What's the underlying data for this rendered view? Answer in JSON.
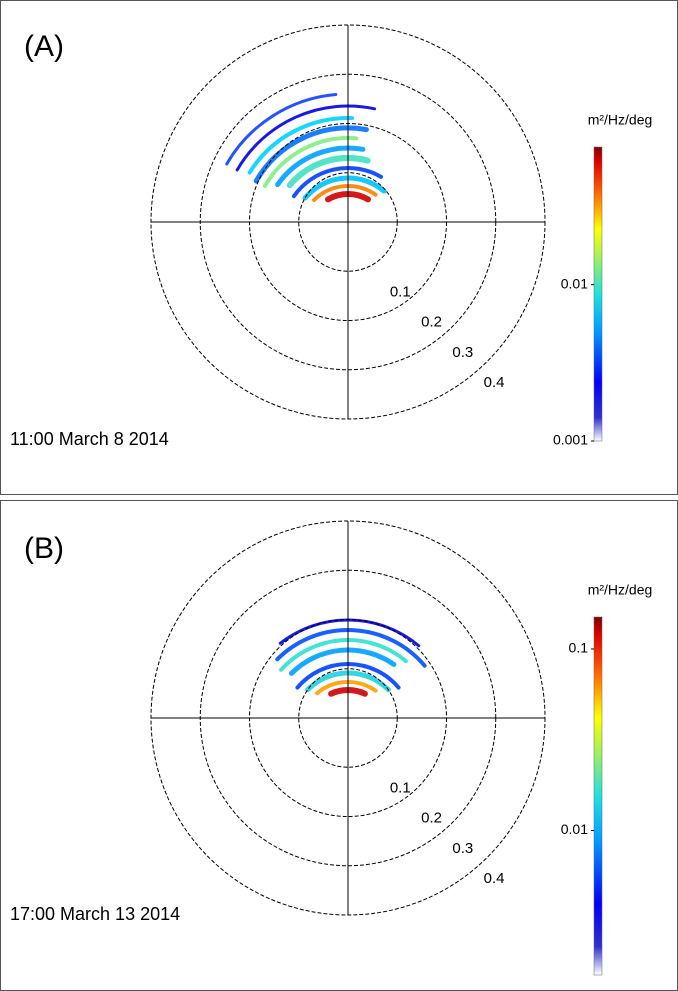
{
  "chart_data": [
    {
      "type": "polar",
      "title": "(A)",
      "annotation": "11:00  March 8 2014",
      "rlim": [
        0,
        0.4
      ],
      "rticks": [
        0.1,
        0.2,
        0.3,
        0.4
      ],
      "colorbar": {
        "label": "m²/Hz/deg",
        "log_scale": true,
        "clim": [
          0.001,
          0.076
        ],
        "ticks": [
          0.01,
          0.001
        ]
      }
    },
    {
      "type": "polar",
      "title": "(B)",
      "annotation": "17:00  March 13 2014",
      "rlim": [
        0,
        0.4
      ],
      "rticks": [
        0.1,
        0.2,
        0.3,
        0.4
      ],
      "colorbar": {
        "label": "m²/Hz/deg",
        "log_scale": true,
        "clim": [
          0.0016,
          0.15
        ],
        "ticks": [
          0.1,
          0.01
        ]
      }
    }
  ]
}
